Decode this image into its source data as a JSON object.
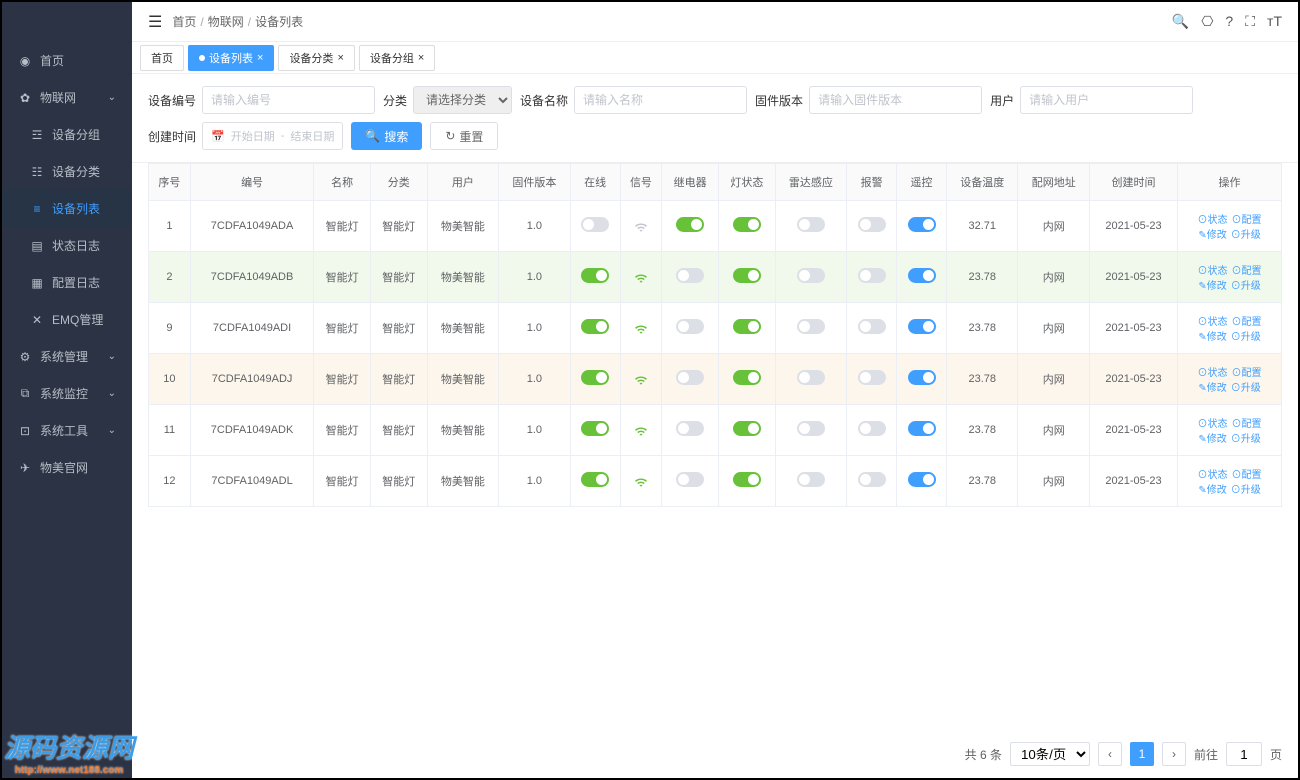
{
  "colors": {
    "sidebar_bg": "#2c3344",
    "primary": "#409eff",
    "success": "#67c23a",
    "border": "#ebeef5",
    "row_green": "#f0f9eb",
    "row_yellow": "#fdf6ec"
  },
  "sidebar": {
    "items": [
      {
        "icon": "dashboard",
        "label": "首页"
      },
      {
        "icon": "iot",
        "label": "物联网",
        "expanded": true
      },
      {
        "icon": "group",
        "label": "设备分组",
        "sub": true
      },
      {
        "icon": "category",
        "label": "设备分类",
        "sub": true
      },
      {
        "icon": "list",
        "label": "设备列表",
        "sub": true,
        "active": true
      },
      {
        "icon": "log",
        "label": "状态日志",
        "sub": true
      },
      {
        "icon": "config",
        "label": "配置日志",
        "sub": true
      },
      {
        "icon": "x",
        "label": "EMQ管理",
        "sub": true
      },
      {
        "icon": "gear",
        "label": "系统管理",
        "expandable": true
      },
      {
        "icon": "monitor",
        "label": "系统监控",
        "expandable": true
      },
      {
        "icon": "tool",
        "label": "系统工具",
        "expandable": true
      },
      {
        "icon": "plane",
        "label": "物美官网"
      }
    ]
  },
  "breadcrumb": [
    "首页",
    "物联网",
    "设备列表"
  ],
  "tabs": [
    {
      "label": "首页",
      "closable": false
    },
    {
      "label": "设备列表",
      "closable": true,
      "active": true
    },
    {
      "label": "设备分类",
      "closable": true
    },
    {
      "label": "设备分组",
      "closable": true
    }
  ],
  "filters": {
    "device_id": {
      "label": "设备编号",
      "placeholder": "请输入编号"
    },
    "category": {
      "label": "分类",
      "placeholder": "请选择分类"
    },
    "device_name": {
      "label": "设备名称",
      "placeholder": "请输入名称"
    },
    "firmware": {
      "label": "固件版本",
      "placeholder": "请输入固件版本"
    },
    "user": {
      "label": "用户",
      "placeholder": "请输入用户"
    },
    "create_time": {
      "label": "创建时间",
      "start": "开始日期",
      "end": "结束日期"
    },
    "search_btn": "搜索",
    "reset_btn": "重置"
  },
  "table": {
    "columns": [
      "序号",
      "编号",
      "名称",
      "分类",
      "用户",
      "固件版本",
      "在线",
      "信号",
      "继电器",
      "灯状态",
      "雷达感应",
      "报警",
      "遥控",
      "设备温度",
      "配网地址",
      "创建时间",
      "操作"
    ],
    "rows": [
      {
        "idx": 1,
        "id": "7CDFA1049ADA",
        "name": "智能灯",
        "category": "智能灯",
        "user": "物美智能",
        "fw": "1.0",
        "online": false,
        "signal": "weak",
        "relay": true,
        "light": true,
        "radar": false,
        "alarm": false,
        "remote": true,
        "temp": "32.71",
        "net": "内网",
        "date": "2021-05-23",
        "row_class": ""
      },
      {
        "idx": 2,
        "id": "7CDFA1049ADB",
        "name": "智能灯",
        "category": "智能灯",
        "user": "物美智能",
        "fw": "1.0",
        "online": true,
        "signal": "strong",
        "relay": false,
        "light": true,
        "radar": false,
        "alarm": false,
        "remote": true,
        "temp": "23.78",
        "net": "内网",
        "date": "2021-05-23",
        "row_class": "row-green"
      },
      {
        "idx": 9,
        "id": "7CDFA1049ADI",
        "name": "智能灯",
        "category": "智能灯",
        "user": "物美智能",
        "fw": "1.0",
        "online": true,
        "signal": "strong",
        "relay": false,
        "light": true,
        "radar": false,
        "alarm": false,
        "remote": true,
        "temp": "23.78",
        "net": "内网",
        "date": "2021-05-23",
        "row_class": ""
      },
      {
        "idx": 10,
        "id": "7CDFA1049ADJ",
        "name": "智能灯",
        "category": "智能灯",
        "user": "物美智能",
        "fw": "1.0",
        "online": true,
        "signal": "strong",
        "relay": false,
        "light": true,
        "radar": false,
        "alarm": false,
        "remote": true,
        "temp": "23.78",
        "net": "内网",
        "date": "2021-05-23",
        "row_class": "row-yellow"
      },
      {
        "idx": 11,
        "id": "7CDFA1049ADK",
        "name": "智能灯",
        "category": "智能灯",
        "user": "物美智能",
        "fw": "1.0",
        "online": true,
        "signal": "strong",
        "relay": false,
        "light": true,
        "radar": false,
        "alarm": false,
        "remote": true,
        "temp": "23.78",
        "net": "内网",
        "date": "2021-05-23",
        "row_class": ""
      },
      {
        "idx": 12,
        "id": "7CDFA1049ADL",
        "name": "智能灯",
        "category": "智能灯",
        "user": "物美智能",
        "fw": "1.0",
        "online": true,
        "signal": "strong",
        "relay": false,
        "light": true,
        "radar": false,
        "alarm": false,
        "remote": true,
        "temp": "23.78",
        "net": "内网",
        "date": "2021-05-23",
        "row_class": ""
      }
    ],
    "ops": {
      "status": "状态",
      "config": "配置",
      "edit": "修改",
      "upgrade": "升级"
    }
  },
  "pagination": {
    "total_label": "共 6 条",
    "page_size": "10条/页",
    "current": 1,
    "goto_prefix": "前往",
    "goto_suffix": "页",
    "goto_value": "1"
  },
  "watermark": {
    "text": "源码资源网",
    "url": "http://www.net188.com"
  }
}
